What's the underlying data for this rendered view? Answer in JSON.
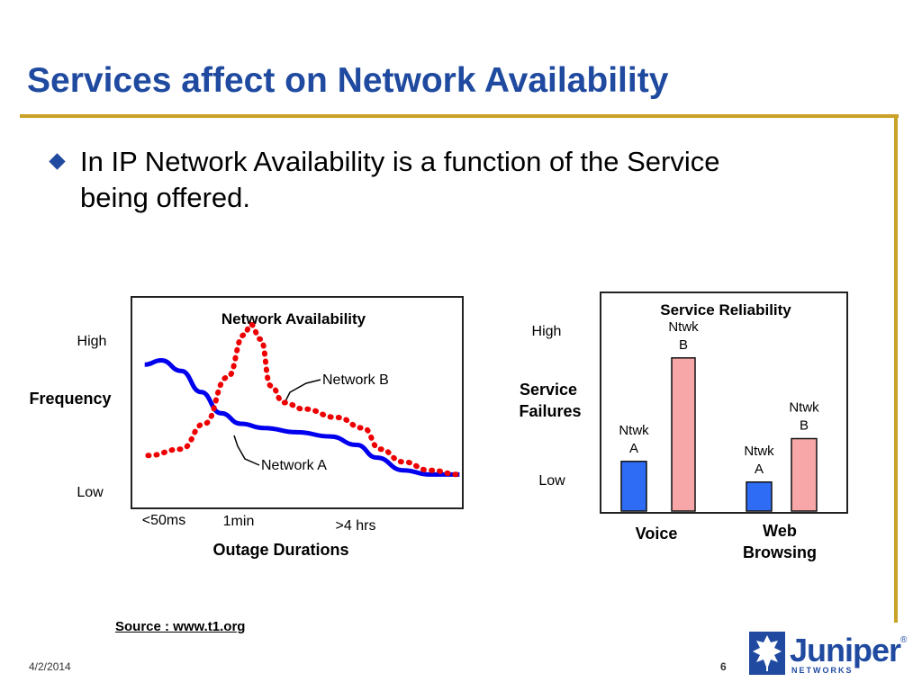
{
  "slide": {
    "title": "Services affect on Network Availability",
    "bullet": "In IP Network Availability is a function of the Service being offered.",
    "source": "Source : www.t1.org",
    "date": "4/2/2014",
    "page_number": "6"
  },
  "logo": {
    "name": "Juniper",
    "sub": "NETWORKS",
    "reg": "®",
    "icon": "juniper-leaf-icon"
  },
  "colors": {
    "title": "#1f4aa0",
    "rule": "#c9a227",
    "series_a": "#0000ee",
    "series_b": "#ee0000",
    "bar_a": "#2f6cf5",
    "bar_b": "#f7a7a7"
  },
  "chart_data": [
    {
      "type": "line",
      "title": "Network Availability",
      "ylabel": "Frequency",
      "xlabel": "Outage Durations",
      "y_ticks": [
        "High",
        "Low"
      ],
      "x_ticks": [
        "<50ms",
        "1min",
        ">4 hrs"
      ],
      "annotations": [
        "Network B",
        "Network A"
      ],
      "grid": false,
      "series": [
        {
          "name": "Network A",
          "style": "solid",
          "color": "#0000ee",
          "points": [
            [
              0.04,
              0.68
            ],
            [
              0.09,
              0.7
            ],
            [
              0.15,
              0.65
            ],
            [
              0.21,
              0.55
            ],
            [
              0.27,
              0.45
            ],
            [
              0.33,
              0.4
            ],
            [
              0.4,
              0.38
            ],
            [
              0.5,
              0.36
            ],
            [
              0.6,
              0.34
            ],
            [
              0.68,
              0.3
            ],
            [
              0.74,
              0.24
            ],
            [
              0.82,
              0.18
            ],
            [
              0.9,
              0.16
            ],
            [
              0.99,
              0.16
            ]
          ]
        },
        {
          "name": "Network B",
          "style": "dotted",
          "color": "#ee0000",
          "points": [
            [
              0.05,
              0.25
            ],
            [
              0.15,
              0.28
            ],
            [
              0.22,
              0.4
            ],
            [
              0.29,
              0.62
            ],
            [
              0.34,
              0.82
            ],
            [
              0.36,
              0.87
            ],
            [
              0.39,
              0.8
            ],
            [
              0.42,
              0.58
            ],
            [
              0.46,
              0.5
            ],
            [
              0.52,
              0.47
            ],
            [
              0.62,
              0.43
            ],
            [
              0.7,
              0.38
            ],
            [
              0.75,
              0.28
            ],
            [
              0.82,
              0.22
            ],
            [
              0.9,
              0.18
            ],
            [
              0.99,
              0.16
            ]
          ]
        }
      ]
    },
    {
      "type": "bar",
      "title": "Service Reliability",
      "ylabel": "Service Failures",
      "y_ticks": [
        "High",
        "Low"
      ],
      "categories": [
        "Voice",
        "Web Browsing"
      ],
      "grid": false,
      "series": [
        {
          "name": "Ntwk A",
          "color": "#2f6cf5",
          "values": [
            0.24,
            0.14
          ]
        },
        {
          "name": "Ntwk B",
          "color": "#f7a7a7",
          "values": [
            0.74,
            0.35
          ]
        }
      ]
    }
  ]
}
